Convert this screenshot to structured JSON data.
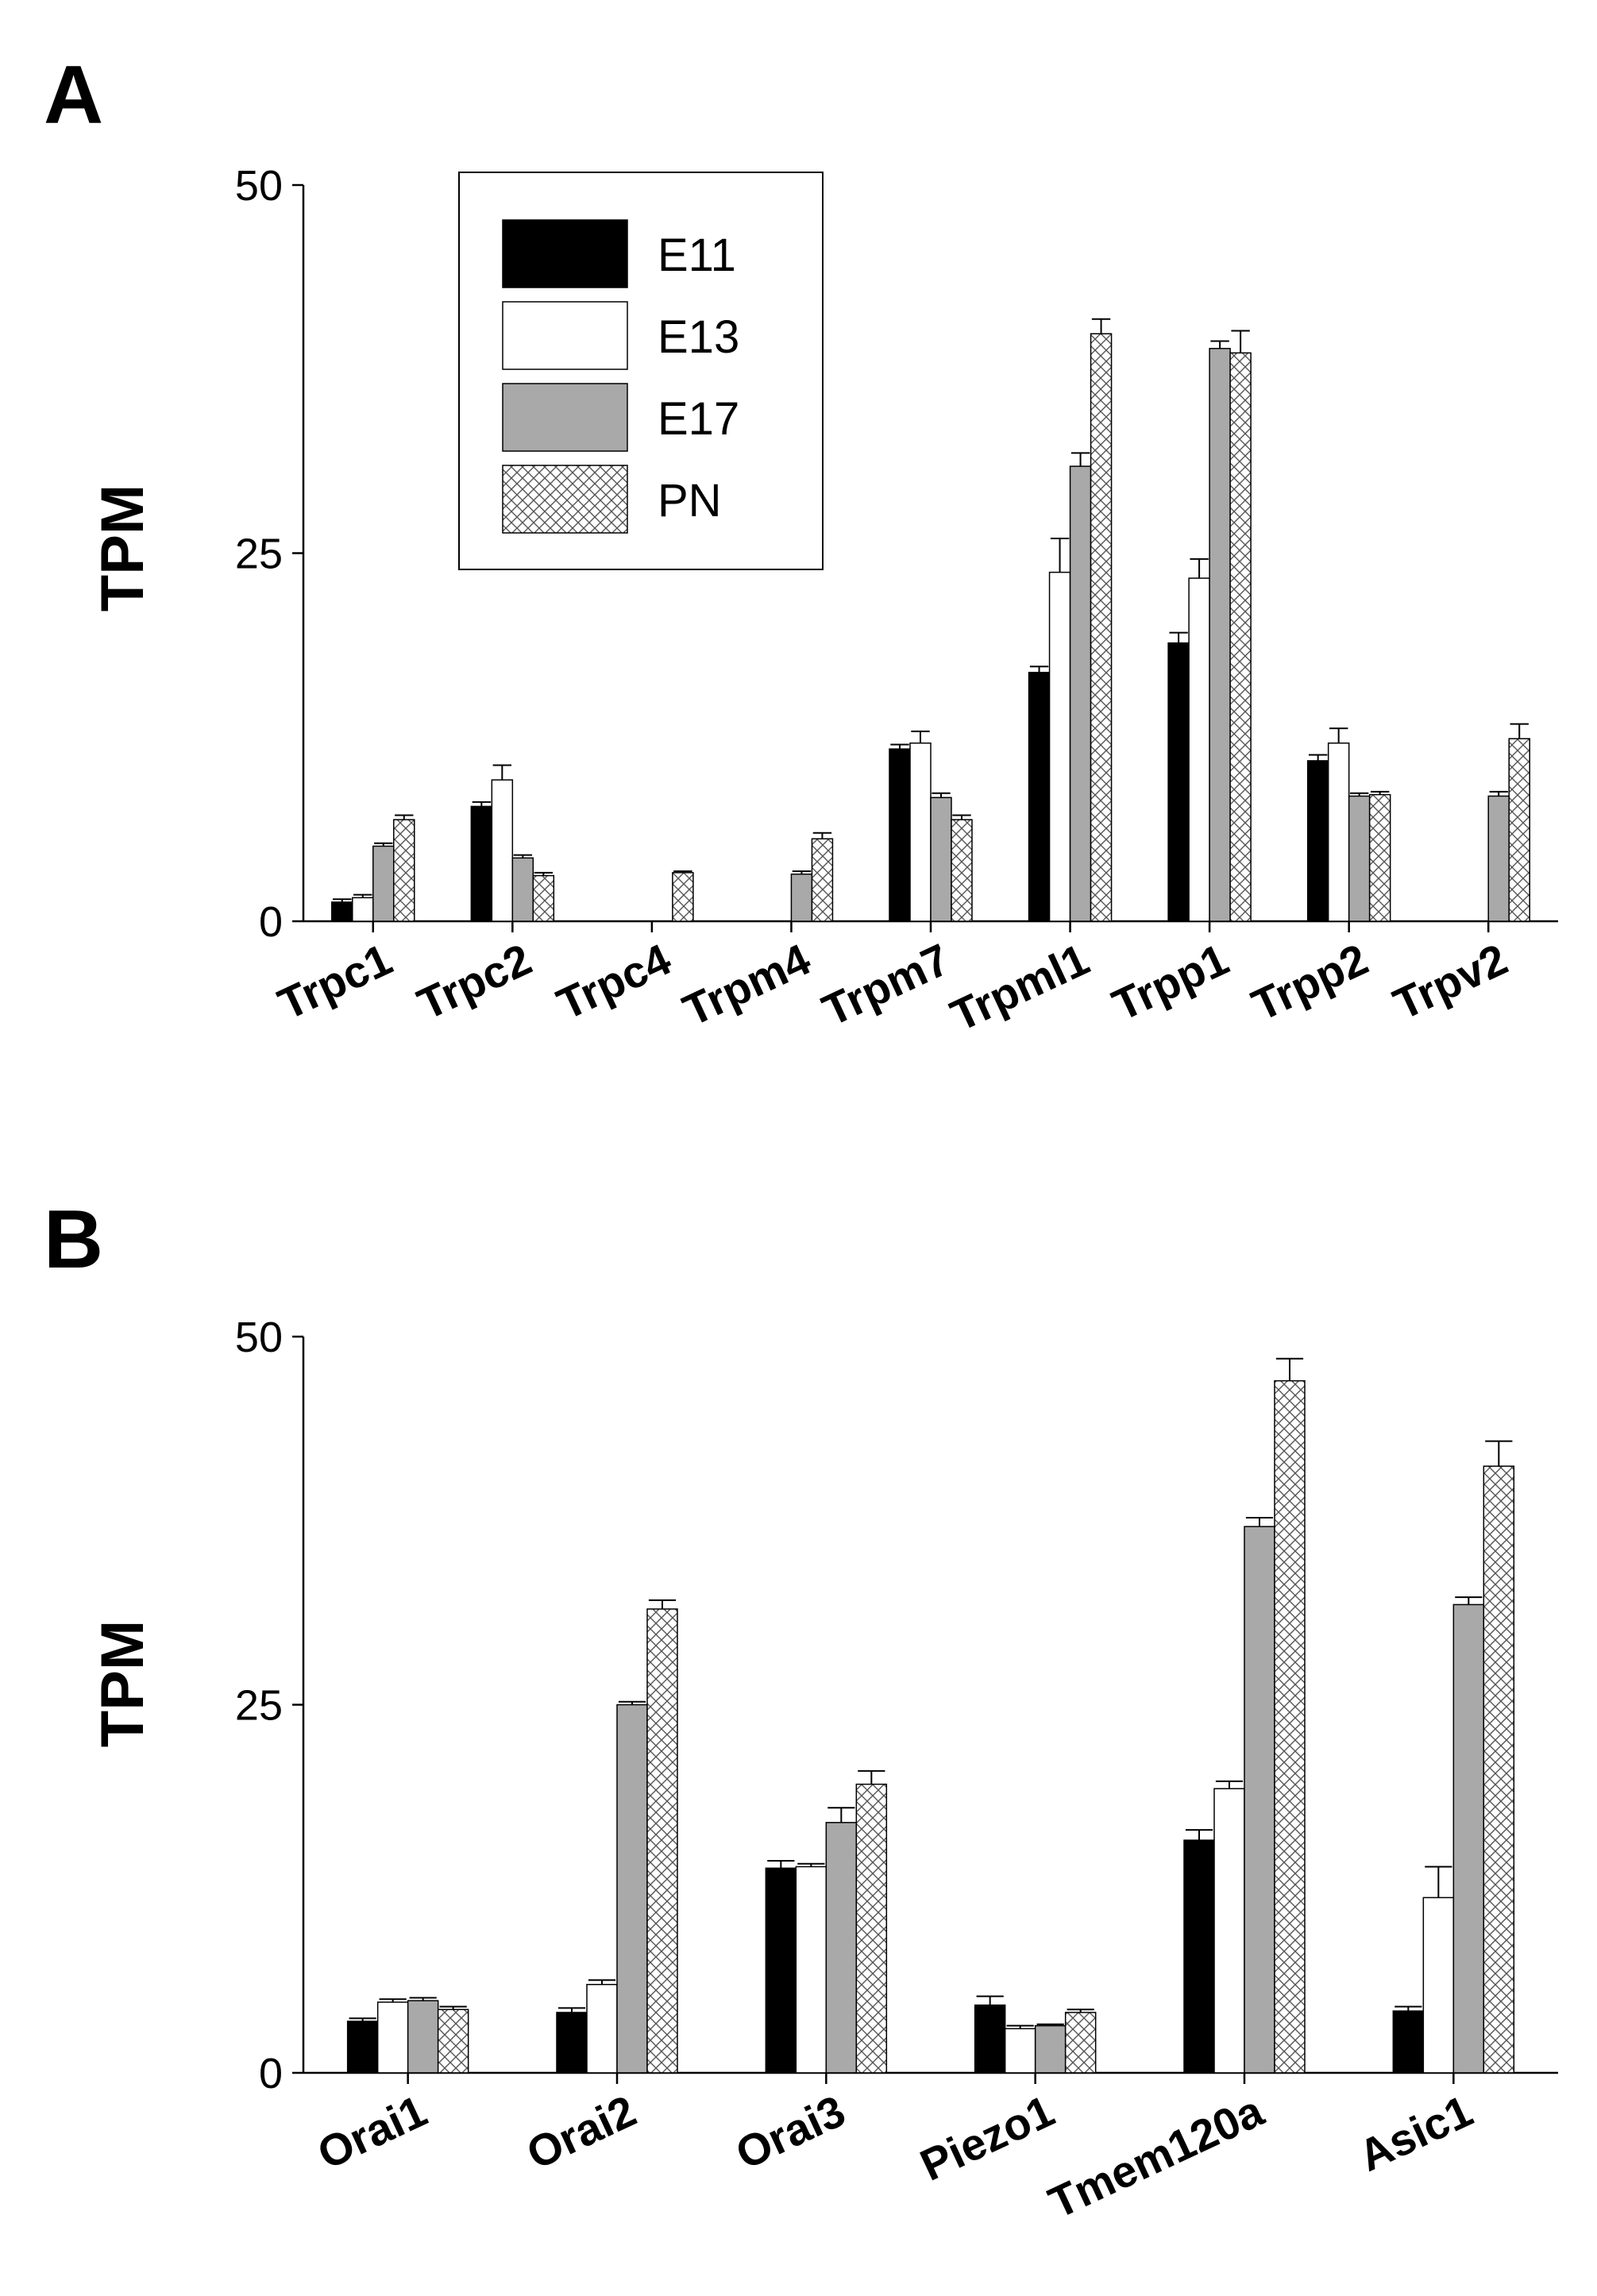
{
  "chart_data": [
    {
      "panel": "A",
      "type": "bar",
      "ylabel": "TPM",
      "ylim": [
        0,
        50
      ],
      "yticks": [
        0,
        25,
        50
      ],
      "categories": [
        "Trpc1",
        "Trpc2",
        "Trpc4",
        "Trpm4",
        "Trpm7",
        "Trpml1",
        "Trpp1",
        "Trpp2",
        "Trpv2"
      ],
      "series": [
        {
          "name": "E11",
          "fill": "#000000",
          "values": [
            1.3,
            7.8,
            0,
            0,
            11.7,
            16.9,
            18.9,
            10.9,
            0
          ],
          "errors": [
            0.2,
            0.3,
            0,
            0,
            0.3,
            0.4,
            0.7,
            0.4,
            0
          ]
        },
        {
          "name": "E13",
          "fill": "#ffffff",
          "values": [
            1.6,
            9.6,
            0,
            0,
            12.1,
            23.7,
            23.3,
            12.1,
            0
          ],
          "errors": [
            0.2,
            1.0,
            0,
            0,
            0.8,
            2.3,
            1.3,
            1.0,
            0
          ]
        },
        {
          "name": "E17",
          "fill": "#a9a9a9",
          "values": [
            5.1,
            4.3,
            0,
            3.2,
            8.4,
            30.9,
            38.9,
            8.5,
            8.5
          ],
          "errors": [
            0.2,
            0.2,
            0,
            0.2,
            0.3,
            0.9,
            0.5,
            0.2,
            0.3
          ]
        },
        {
          "name": "PN",
          "fill": "hatch",
          "values": [
            6.9,
            3.1,
            3.3,
            5.6,
            6.9,
            39.9,
            38.6,
            8.6,
            12.4
          ],
          "errors": [
            0.3,
            0.2,
            0.1,
            0.4,
            0.3,
            1.0,
            1.5,
            0.2,
            1.0
          ]
        }
      ],
      "legend": {
        "position": "top-left",
        "entries": [
          "E11",
          "E13",
          "E17",
          "PN"
        ]
      }
    },
    {
      "panel": "B",
      "type": "bar",
      "ylabel": "TPM",
      "ylim": [
        0,
        50
      ],
      "yticks": [
        0,
        25,
        50
      ],
      "categories": [
        "Orai1",
        "Orai2",
        "Orai3",
        "Piezo1",
        "Tmem120a",
        "Asic1"
      ],
      "series": [
        {
          "name": "E11",
          "fill": "#000000",
          "values": [
            3.5,
            4.1,
            13.9,
            4.6,
            15.8,
            4.2
          ],
          "errors": [
            0.2,
            0.3,
            0.5,
            0.6,
            0.7,
            0.3
          ]
        },
        {
          "name": "E13",
          "fill": "#ffffff",
          "values": [
            4.8,
            6.0,
            14.0,
            3.0,
            19.3,
            11.9
          ],
          "errors": [
            0.2,
            0.3,
            0.2,
            0.2,
            0.5,
            2.1
          ]
        },
        {
          "name": "E17",
          "fill": "#a9a9a9",
          "values": [
            4.9,
            25.0,
            17.0,
            3.2,
            37.1,
            31.8
          ],
          "errors": [
            0.2,
            0.2,
            1.0,
            0.1,
            0.6,
            0.5
          ]
        },
        {
          "name": "PN",
          "fill": "hatch",
          "values": [
            4.3,
            31.5,
            19.6,
            4.1,
            47.0,
            41.2
          ],
          "errors": [
            0.2,
            0.6,
            0.9,
            0.2,
            1.5,
            1.7
          ]
        }
      ]
    }
  ],
  "colors": {
    "E11": "#000000",
    "E13": "#ffffff",
    "E17": "#a9a9a9",
    "PN_hatch": "#555555",
    "axis": "#000000"
  }
}
